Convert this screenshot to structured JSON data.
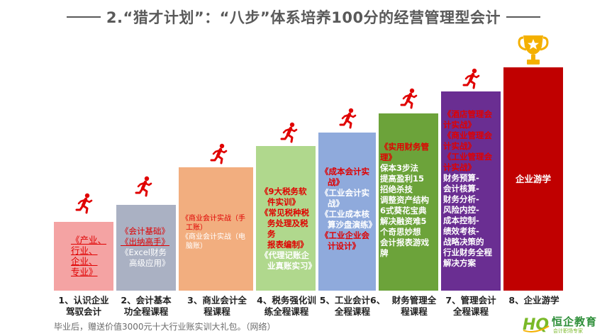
{
  "title": "2.“猎才计划”：“八步”体系培养100分的经营管理型会计",
  "steps": [
    {
      "label_lines": [
        "1、认识企业",
        "驾驭会计"
      ],
      "content": [
        "《产业、",
        "行业、",
        "企业、",
        "专业》"
      ]
    },
    {
      "label_lines": [
        "2、会计基本",
        "功全程课程"
      ],
      "content": [
        "《会计基础》",
        "《出纳高手》",
        "《Excel财务",
        "高级应用》"
      ]
    },
    {
      "label_lines": [
        "3、商业会计全",
        "程课程"
      ],
      "content": [
        "《商业会计实战（手",
        "工账）",
        "《商业会计实战（电",
        "脑账）"
      ]
    },
    {
      "label_lines": [
        "4、税务强化训",
        "练全程课程"
      ],
      "content": [
        "《9大税务软",
        "件实训》",
        "《常见税种税",
        "务处理及税务",
        "报表编制》",
        "《代理记账企",
        "业真账实习》"
      ]
    },
    {
      "label_lines": [
        "5、工业会计6、",
        "全程课程"
      ],
      "content": [
        "《成本会计实",
        "战》",
        "《工业会计实",
        "战》",
        "《工业成本核",
        "算沙盘演练》",
        "《工业企业会",
        "计设计》"
      ]
    },
    {
      "label_lines": [
        "财务管理全",
        "程课程"
      ],
      "content": [
        "《实用财务管",
        "理》",
        "保本3步法",
        "提高盈利15",
        "招绝杀技",
        "调整资产结构",
        "6式葵花宝典",
        "解决融资难5",
        "个奇思妙想",
        "会计报表游戏",
        "牌"
      ]
    },
    {
      "label_lines": [
        "7、管理会计",
        "全程课程"
      ],
      "content": [
        "《酒店管理会",
        "计实战》",
        "《商业管理会",
        "计实战》",
        "《工业管理会",
        "计实战》",
        "财务预算-",
        "会计核算-",
        "财务分析-",
        "风险内控-",
        "成本控制-",
        "绩效考核-",
        "战略决策的",
        "行业财务全程",
        "解决方案"
      ]
    },
    {
      "label_lines": [
        "8、企业游学"
      ],
      "content": [
        "企业游学"
      ]
    }
  ],
  "footer": "毕业后，赠送价值3000元十大行业账实训大礼包。（网络）",
  "logo": {
    "text": "恒企教育",
    "subtext": "会计职场专家",
    "initials": "HQ"
  },
  "colors": {
    "step1": "#f4a3a3",
    "step2": "#aab1c3",
    "step3": "#f2ae7f",
    "step4": "#b0d88d",
    "step5": "#8faadc",
    "step6": "#6ca33a",
    "step7": "#6a2e92",
    "step8": "#c00000",
    "runner": "#e00000",
    "trophy": "#f4b000"
  }
}
